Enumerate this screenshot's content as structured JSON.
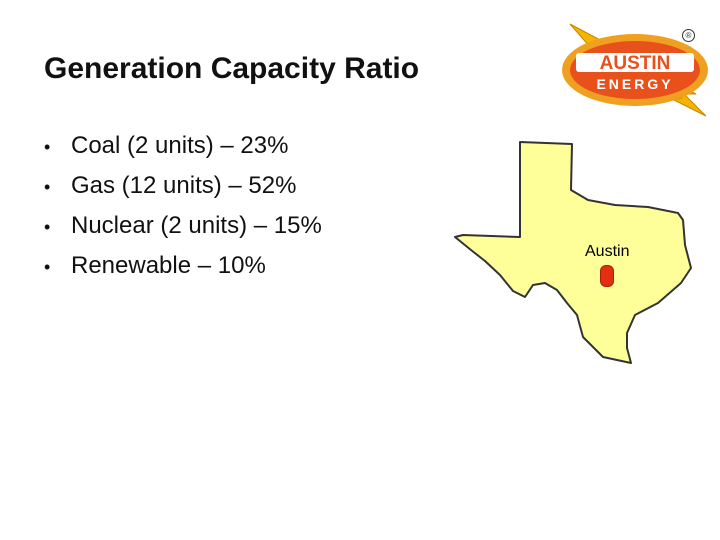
{
  "slide": {
    "title": "Generation Capacity Ratio",
    "bullets": [
      "Coal (2 units) – 23%",
      "Gas (12 units) – 52%",
      "Nuclear (2 units) – 15%",
      "Renewable – 10%"
    ]
  },
  "logo": {
    "line1": "AUSTIN",
    "line2": "ENERGY",
    "registered_mark": "®"
  },
  "map": {
    "city_label": "Austin",
    "state_fill_color": "#ffff99",
    "marker_color": "#e03010"
  }
}
